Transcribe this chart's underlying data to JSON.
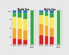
{
  "groups": [
    "North Sea",
    "Baltic Sea"
  ],
  "years": [
    "2010",
    "2015",
    "2021",
    "2027\ntarget"
  ],
  "colors": {
    "very_good": "#1F6BB5",
    "good": "#33A843",
    "moderate": "#F9E84B",
    "poor": "#F5A623",
    "bad": "#E02020"
  },
  "north_sea": {
    "bad": [
      18,
      16,
      14,
      0
    ],
    "poor": [
      32,
      30,
      28,
      0
    ],
    "moderate": [
      32,
      33,
      33,
      0
    ],
    "good": [
      13,
      14,
      18,
      100
    ],
    "very_good": [
      5,
      7,
      7,
      0
    ]
  },
  "baltic_sea": {
    "bad": [
      28,
      26,
      22,
      0
    ],
    "poor": [
      32,
      30,
      27,
      0
    ],
    "moderate": [
      26,
      28,
      30,
      0
    ],
    "good": [
      10,
      12,
      16,
      100
    ],
    "very_good": [
      4,
      4,
      5,
      0
    ]
  },
  "ylim": [
    0,
    100
  ],
  "yticks": [
    0,
    25,
    50,
    75,
    100
  ],
  "background": "#e8e8e8",
  "plot_bg": "#e8e8e8",
  "title_ns": "North Sea",
  "title_bs": "Baltic Sea"
}
